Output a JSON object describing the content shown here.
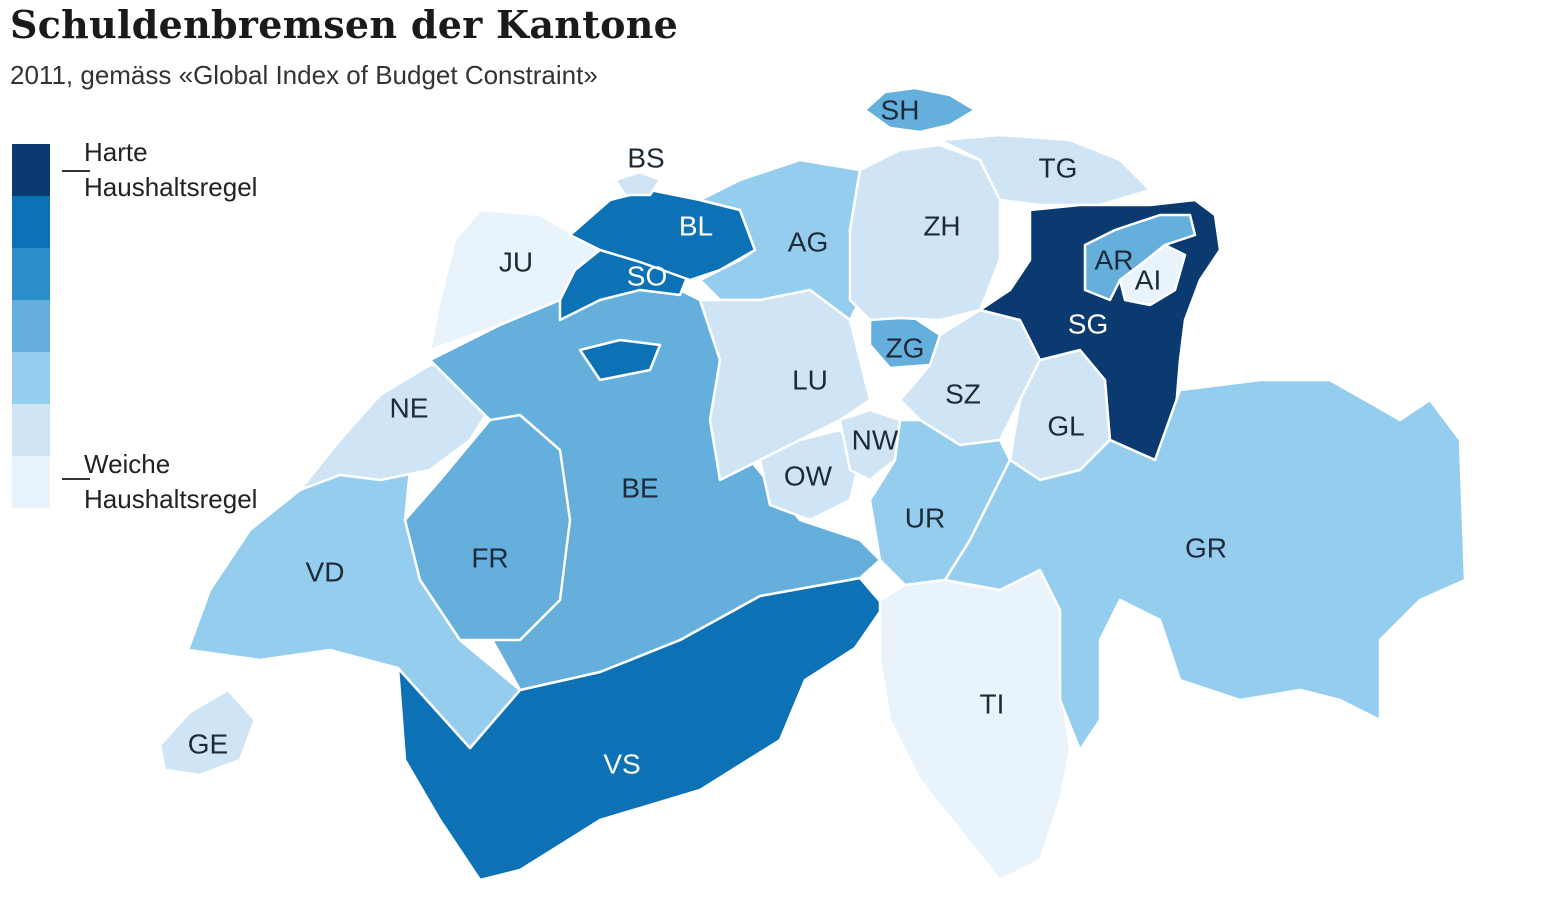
{
  "map": {
    "title": "Schuldenbremsen der Kantone",
    "subtitle": "2011, gemäss «Global Index of Budget Constraint»",
    "legend": {
      "top_label_1": "Harte",
      "top_label_2": "Haushaltsregel",
      "bottom_label_1": "Weiche",
      "bottom_label_2": "Haushaltsregel",
      "scale_colors": [
        "#0a3a70",
        "#0d72b5",
        "#2a8fcc",
        "#65afdc",
        "#95cdee",
        "#cfe5f5",
        "#e9f3fb"
      ]
    },
    "cantons": [
      {
        "code": "SH",
        "level": 3
      },
      {
        "code": "BS",
        "level": 5
      },
      {
        "code": "TG",
        "level": 5
      },
      {
        "code": "ZH",
        "level": 5
      },
      {
        "code": "BL",
        "level": 1
      },
      {
        "code": "AG",
        "level": 4
      },
      {
        "code": "JU",
        "level": 6
      },
      {
        "code": "SO",
        "level": 1
      },
      {
        "code": "AR",
        "level": 3
      },
      {
        "code": "AI",
        "level": 6
      },
      {
        "code": "SG",
        "level": 0
      },
      {
        "code": "ZG",
        "level": 3
      },
      {
        "code": "LU",
        "level": 5
      },
      {
        "code": "SZ",
        "level": 5
      },
      {
        "code": "NE",
        "level": 5
      },
      {
        "code": "GL",
        "level": 5
      },
      {
        "code": "NW",
        "level": 5
      },
      {
        "code": "OW",
        "level": 5
      },
      {
        "code": "BE",
        "level": 3
      },
      {
        "code": "UR",
        "level": 4
      },
      {
        "code": "FR",
        "level": 3
      },
      {
        "code": "GR",
        "level": 4
      },
      {
        "code": "VD",
        "level": 4
      },
      {
        "code": "TI",
        "level": 6
      },
      {
        "code": "VS",
        "level": 1
      },
      {
        "code": "GE",
        "level": 5
      }
    ]
  }
}
